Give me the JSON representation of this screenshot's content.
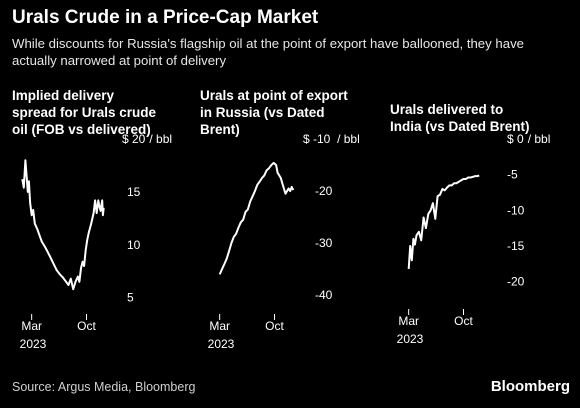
{
  "title": "Urals Crude in a Price-Cap Market",
  "subtitle": "While discounts for Russia's flagship oil at the point of export have ballooned, they have actually narrowed at point of delivery",
  "source": "Source: Argus Media, Bloomberg",
  "brand": "Bloomberg",
  "colors": {
    "background": "#000000",
    "line": "#ffffff",
    "text": "#ffffff"
  },
  "chart_data": [
    {
      "type": "line",
      "title": "Implied delivery spread for Urals crude oil (FOB vs delivered)",
      "title_lines": [
        "Implied delivery",
        "spread for Urals crude",
        "oil (FOB vs delivered)"
      ],
      "unit": "$",
      "unit_suffix": "/ bbl",
      "yticks": [
        20,
        15,
        10,
        5
      ],
      "ylim": [
        4.5,
        20
      ],
      "xtick_labels": [
        "Mar",
        "Oct"
      ],
      "xtick_values": [
        2.0,
        9.0
      ],
      "year_label": "2023",
      "xlim": [
        0.0,
        12.0
      ],
      "series": [
        {
          "x": [
            0.8,
            1.0,
            1.2,
            1.35,
            1.5,
            1.65,
            1.8,
            2.0,
            2.2,
            2.4,
            2.7,
            3.0,
            3.3,
            3.7,
            4.0,
            4.4,
            4.8,
            5.2,
            5.6,
            6.0,
            6.4,
            6.7,
            7.0,
            7.3,
            7.6,
            7.9,
            8.1,
            8.3,
            8.5,
            8.7,
            8.9,
            9.1,
            9.3,
            9.6,
            9.9,
            10.1,
            10.3,
            10.5,
            10.6,
            10.8,
            11.0,
            11.1,
            11.2
          ],
          "y": [
            16.2,
            15.4,
            18.0,
            16.5,
            15.0,
            16.0,
            14.0,
            12.8,
            13.3,
            12.0,
            11.5,
            10.9,
            10.3,
            9.8,
            9.4,
            8.8,
            8.2,
            7.6,
            7.2,
            6.9,
            6.5,
            6.2,
            6.8,
            5.8,
            6.5,
            7.0,
            6.5,
            7.8,
            8.4,
            8.0,
            9.5,
            10.5,
            11.2,
            12.0,
            13.0,
            14.2,
            13.0,
            14.2,
            13.8,
            13.2,
            14.2,
            12.8,
            13.5
          ]
        }
      ]
    },
    {
      "type": "line",
      "title": "Urals at point of export in Russia (vs Dated Brent)",
      "title_lines": [
        "Urals at point of export",
        "in Russia (vs Dated",
        "Brent)"
      ],
      "unit": "$",
      "unit_suffix": "/ bbl",
      "yticks": [
        -10,
        -20,
        -30,
        -40
      ],
      "ylim": [
        -41.5,
        -10
      ],
      "xtick_labels": [
        "Mar",
        "Oct"
      ],
      "xtick_values": [
        2.0,
        9.0
      ],
      "year_label": "2023",
      "xlim": [
        0.0,
        12.0
      ],
      "series": [
        {
          "x": [
            2.0,
            2.3,
            2.6,
            2.9,
            3.2,
            3.5,
            3.8,
            4.1,
            4.4,
            4.7,
            5.0,
            5.3,
            5.6,
            5.9,
            6.2,
            6.5,
            6.8,
            7.1,
            7.4,
            7.7,
            8.0,
            8.3,
            8.6,
            8.9,
            9.2,
            9.4,
            9.6,
            9.8,
            10.0,
            10.2,
            10.4,
            10.6,
            10.8,
            11.0,
            11.2,
            11.4
          ],
          "y": [
            -36.0,
            -35.0,
            -34.0,
            -33.0,
            -31.5,
            -30.0,
            -28.8,
            -28.2,
            -27.0,
            -26.0,
            -25.5,
            -24.0,
            -23.5,
            -22.0,
            -21.0,
            -20.0,
            -18.8,
            -18.2,
            -17.5,
            -17.0,
            -16.0,
            -15.6,
            -15.0,
            -14.6,
            -15.0,
            -16.5,
            -17.0,
            -17.5,
            -18.5,
            -19.5,
            -20.5,
            -20.0,
            -19.5,
            -20.0,
            -19.2,
            -19.8
          ]
        }
      ]
    },
    {
      "type": "line",
      "title": "Urals delivered to India (vs Dated Brent)",
      "title_lines": [
        "Urals delivered to",
        "India (vs Dated Brent)"
      ],
      "unit": "$",
      "unit_suffix": "/ bbl",
      "yticks": [
        0,
        -5,
        -10,
        -15,
        -20
      ],
      "ylim": [
        -22,
        0
      ],
      "xtick_labels": [
        "Mar",
        "Oct"
      ],
      "xtick_values": [
        2.0,
        9.0
      ],
      "year_label": "2023",
      "xlim": [
        0.0,
        12.0
      ],
      "series": [
        {
          "x": [
            2.0,
            2.2,
            2.4,
            2.6,
            2.8,
            3.0,
            3.3,
            3.6,
            3.9,
            4.2,
            4.5,
            4.8,
            5.1,
            5.4,
            5.7,
            6.0,
            6.3,
            6.6,
            6.9,
            7.2,
            7.5,
            7.8,
            8.1,
            8.4,
            8.7,
            9.0,
            9.3,
            9.6,
            9.9,
            10.2,
            10.5,
            10.8,
            11.0
          ],
          "y": [
            -18.2,
            -15.0,
            -17.0,
            -14.0,
            -14.8,
            -13.5,
            -13.0,
            -14.2,
            -11.0,
            -12.5,
            -10.5,
            -10.0,
            -9.0,
            -11.2,
            -8.0,
            -7.8,
            -7.0,
            -7.2,
            -6.8,
            -6.5,
            -6.5,
            -6.2,
            -6.2,
            -6.0,
            -5.8,
            -5.6,
            -5.6,
            -5.4,
            -5.4,
            -5.3,
            -5.2,
            -5.2,
            -5.1
          ]
        }
      ]
    }
  ]
}
